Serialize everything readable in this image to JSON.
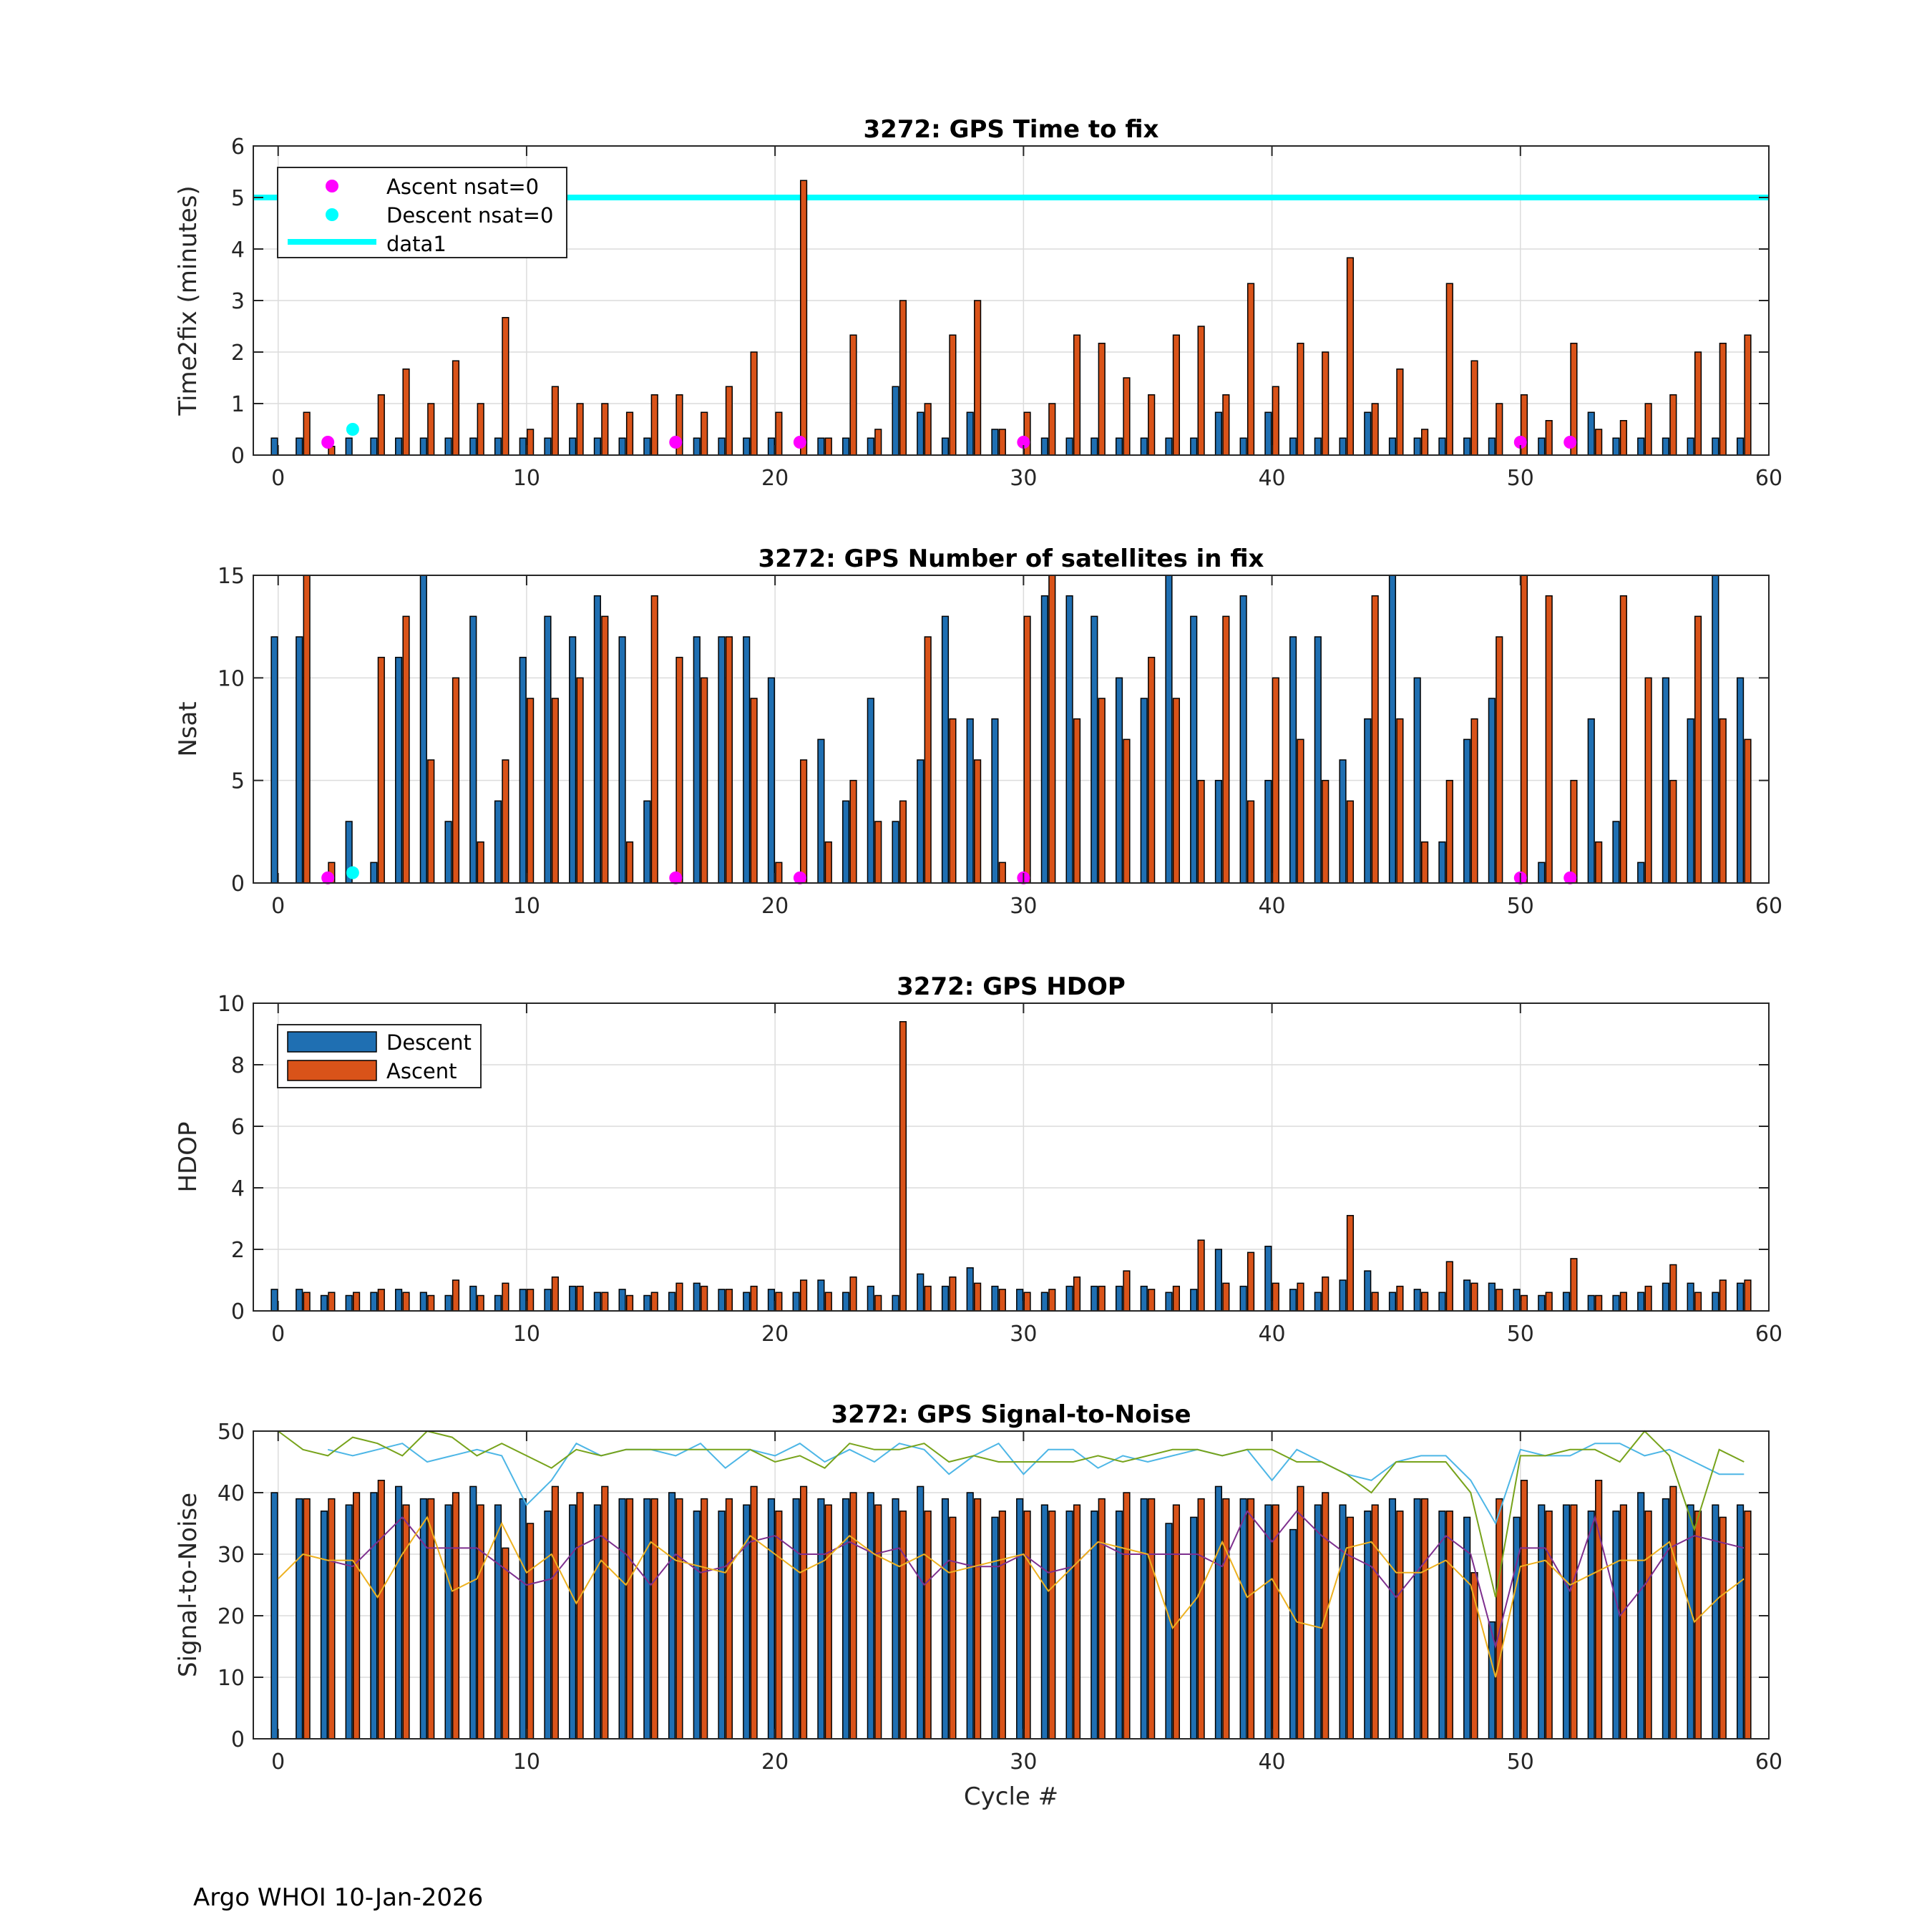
{
  "footer": "Argo WHOI 10-Jan-2026",
  "colors": {
    "descent": "#1f6fb2",
    "ascent": "#d95319",
    "cyan": "#00ffff",
    "magenta": "#ff00ff",
    "snr_light": "#4db6e6",
    "snr_green": "#77a31b",
    "snr_purple": "#7e2f8e",
    "snr_orange": "#edb120"
  },
  "chart_data": [
    {
      "type": "bar",
      "title": "3272: GPS Time to fix",
      "xlabel": "",
      "ylabel": "Time2fix (minutes)",
      "xlim": [
        -1,
        60
      ],
      "ylim": [
        0,
        6
      ],
      "xticks": [
        0,
        10,
        20,
        30,
        40,
        50,
        60
      ],
      "yticks": [
        0,
        1,
        2,
        3,
        4,
        5,
        6
      ],
      "legend": {
        "placement": "top-left",
        "entries": [
          "Ascent nsat=0",
          "Descent nsat=0",
          "data1"
        ]
      },
      "reference_line": {
        "name": "data1",
        "y": 5
      },
      "series": [
        {
          "name": "Descent",
          "values": [
            0.33,
            0.33,
            0,
            0.33,
            0.33,
            0.33,
            0.33,
            0.33,
            0.33,
            0.33,
            0.33,
            0.33,
            0.33,
            0.33,
            0.33,
            0.33,
            0,
            0.33,
            0.33,
            0.33,
            0.33,
            0,
            0.33,
            0.33,
            0.33,
            1.33,
            0.83,
            0.33,
            0.83,
            0.5,
            0,
            0.33,
            0.33,
            0.33,
            0.33,
            0.33,
            0.33,
            0.33,
            0.83,
            0.33,
            0.83,
            0.33,
            0.33,
            0.33,
            0.83,
            0.33,
            0.33,
            0.33,
            0.33,
            0.33,
            0,
            0.33,
            0,
            0.83,
            0.33,
            0.33,
            0.33,
            0.33,
            0.33,
            0.33
          ]
        },
        {
          "name": "Ascent",
          "values": [
            0,
            0.83,
            0.17,
            0,
            1.17,
            1.67,
            1,
            1.83,
            1,
            2.67,
            0.5,
            1.33,
            1,
            1,
            0.83,
            1.17,
            1.17,
            0.83,
            1.33,
            2,
            0.83,
            5.33,
            0.33,
            2.33,
            0.5,
            3,
            1,
            2.33,
            3,
            0.5,
            0.83,
            1,
            2.33,
            2.17,
            1.5,
            1.17,
            2.33,
            2.5,
            1.17,
            3.33,
            1.33,
            2.17,
            2,
            3.83,
            1,
            1.67,
            0.5,
            3.33,
            1.83,
            1,
            1.17,
            0.67,
            2.17,
            0.5,
            0.67,
            1,
            1.17,
            2,
            2.17,
            2.33
          ]
        },
        {
          "name": "Ascent nsat=0",
          "x": [
            2,
            16,
            21,
            30,
            50,
            52
          ],
          "y": [
            0.25,
            0.25,
            0.25,
            0.25,
            0.25,
            0.25
          ]
        },
        {
          "name": "Descent nsat=0",
          "x": [
            3
          ],
          "y": [
            0.5
          ]
        }
      ]
    },
    {
      "type": "bar",
      "title": "3272: GPS Number of satellites in fix",
      "xlabel": "",
      "ylabel": "Nsat",
      "xlim": [
        -1,
        60
      ],
      "ylim": [
        0,
        15
      ],
      "xticks": [
        0,
        10,
        20,
        30,
        40,
        50,
        60
      ],
      "yticks": [
        0,
        5,
        10,
        15
      ],
      "series": [
        {
          "name": "Descent",
          "values": [
            12,
            12,
            0,
            3,
            1,
            11,
            15,
            3,
            13,
            4,
            11,
            13,
            12,
            14,
            12,
            4,
            0,
            12,
            12,
            12,
            10,
            0,
            7,
            4,
            9,
            3,
            6,
            13,
            8,
            8,
            0,
            14,
            14,
            13,
            10,
            9,
            15,
            13,
            5,
            14,
            5,
            12,
            12,
            6,
            8,
            15,
            10,
            2,
            7,
            9,
            0,
            1,
            0,
            8,
            3,
            1,
            10,
            8,
            15,
            10
          ]
        },
        {
          "name": "Ascent",
          "values": [
            0,
            15,
            1,
            0,
            11,
            13,
            6,
            10,
            2,
            6,
            9,
            9,
            10,
            13,
            2,
            14,
            11,
            10,
            12,
            9,
            1,
            6,
            2,
            5,
            3,
            4,
            12,
            8,
            6,
            1,
            13,
            15,
            8,
            9,
            7,
            11,
            9,
            5,
            13,
            4,
            10,
            7,
            5,
            4,
            14,
            8,
            2,
            5,
            8,
            12,
            15,
            14,
            5,
            2,
            14,
            10,
            5,
            13,
            8,
            7
          ]
        },
        {
          "name": "Ascent nsat=0",
          "x": [
            2,
            16,
            21,
            30,
            50,
            52
          ],
          "y": [
            0.25,
            0.25,
            0.25,
            0.25,
            0.25,
            0.25
          ]
        },
        {
          "name": "Descent nsat=0",
          "x": [
            3
          ],
          "y": [
            0.5
          ]
        }
      ]
    },
    {
      "type": "bar",
      "title": "3272: GPS HDOP",
      "xlabel": "",
      "ylabel": "HDOP",
      "xlim": [
        -1,
        60
      ],
      "ylim": [
        0,
        10
      ],
      "xticks": [
        0,
        10,
        20,
        30,
        40,
        50,
        60
      ],
      "yticks": [
        0,
        2,
        4,
        6,
        8,
        10
      ],
      "legend": {
        "placement": "top-left",
        "entries": [
          "Descent",
          "Ascent"
        ]
      },
      "series": [
        {
          "name": "Descent",
          "values": [
            0.7,
            0.7,
            0.5,
            0.5,
            0.6,
            0.7,
            0.6,
            0.5,
            0.8,
            0.5,
            0.7,
            0.7,
            0.8,
            0.6,
            0.7,
            0.5,
            0.6,
            0.9,
            0.7,
            0.6,
            0.7,
            0.6,
            1,
            0.6,
            0.8,
            0.5,
            1.2,
            0.8,
            1.4,
            0.8,
            0.7,
            0.6,
            0.8,
            0.8,
            0.8,
            0.8,
            0.6,
            0.7,
            2,
            0.8,
            2.1,
            0.7,
            0.6,
            1,
            1.3,
            0.6,
            0.7,
            0.6,
            1,
            0.9,
            0.7,
            0.5,
            0.6,
            0.5,
            0.5,
            0.6,
            0.9,
            0.9,
            0.6,
            0.9
          ]
        },
        {
          "name": "Ascent",
          "values": [
            0,
            0.6,
            0.6,
            0.6,
            0.7,
            0.6,
            0.5,
            1,
            0.5,
            0.9,
            0.7,
            1.1,
            0.8,
            0.6,
            0.5,
            0.6,
            0.9,
            0.8,
            0.7,
            0.8,
            0.6,
            1,
            0.6,
            1.1,
            0.5,
            9.4,
            0.8,
            1.1,
            0.9,
            0.7,
            0.6,
            0.7,
            1.1,
            0.8,
            1.3,
            0.7,
            0.8,
            2.3,
            0.9,
            1.9,
            0.9,
            0.9,
            1.1,
            3.1,
            0.6,
            0.8,
            0.6,
            1.6,
            0.9,
            0.7,
            0.5,
            0.6,
            1.7,
            0.5,
            0.6,
            0.8,
            1.5,
            0.6,
            1,
            1
          ]
        }
      ]
    },
    {
      "type": "bar",
      "title": "3272: GPS Signal-to-Noise",
      "xlabel": "Cycle #",
      "ylabel": "Signal-to-Noise",
      "xlim": [
        -1,
        60
      ],
      "ylim": [
        0,
        50
      ],
      "xticks": [
        0,
        10,
        20,
        30,
        40,
        50,
        60
      ],
      "yticks": [
        0,
        10,
        20,
        30,
        40,
        50
      ],
      "series": [
        {
          "name": "Descent",
          "values": [
            40,
            39,
            37,
            38,
            40,
            41,
            39,
            38,
            41,
            38,
            39,
            37,
            38,
            38,
            39,
            39,
            40,
            37,
            37,
            38,
            39,
            39,
            39,
            39,
            40,
            39,
            41,
            39,
            40,
            36,
            39,
            38,
            37,
            37,
            37,
            39,
            35,
            36,
            41,
            39,
            38,
            34,
            38,
            38,
            37,
            39,
            39,
            37,
            36,
            19,
            36,
            38,
            38,
            37,
            37,
            40,
            39,
            38,
            38,
            38
          ]
        },
        {
          "name": "Ascent",
          "values": [
            0,
            39,
            39,
            40,
            42,
            38,
            39,
            40,
            38,
            31,
            35,
            41,
            40,
            41,
            39,
            39,
            39,
            39,
            39,
            41,
            37,
            41,
            38,
            40,
            38,
            37,
            37,
            36,
            39,
            37,
            37,
            37,
            38,
            39,
            40,
            39,
            38,
            39,
            39,
            39,
            38,
            41,
            40,
            36,
            38,
            37,
            39,
            37,
            27,
            39,
            42,
            37,
            38,
            42,
            38,
            37,
            41,
            37,
            36,
            37
          ]
        },
        {
          "name": "SNR max descent",
          "values": [
            null,
            null,
            47,
            46,
            47,
            48,
            45,
            46,
            47,
            46,
            38,
            42,
            48,
            46,
            47,
            47,
            46,
            48,
            44,
            47,
            46,
            48,
            45,
            47,
            45,
            48,
            47,
            43,
            46,
            48,
            43,
            47,
            47,
            44,
            46,
            45,
            46,
            47,
            46,
            47,
            42,
            47,
            45,
            43,
            42,
            45,
            46,
            46,
            42,
            35,
            47,
            46,
            46,
            48,
            48,
            46,
            47,
            45,
            43,
            43
          ]
        },
        {
          "name": "SNR max ascent",
          "values": [
            50,
            47,
            46,
            49,
            48,
            46,
            52,
            49,
            46,
            48,
            46,
            44,
            47,
            46,
            47,
            47,
            47,
            47,
            47,
            47,
            45,
            46,
            44,
            48,
            47,
            47,
            48,
            45,
            46,
            45,
            45,
            45,
            45,
            46,
            45,
            46,
            47,
            47,
            46,
            47,
            47,
            45,
            45,
            43,
            40,
            45,
            45,
            45,
            40,
            23,
            46,
            46,
            47,
            47,
            45,
            51,
            46,
            34,
            47,
            45
          ]
        },
        {
          "name": "SNR mean descent",
          "values": [
            null,
            null,
            29,
            28,
            32,
            36,
            31,
            31,
            31,
            28,
            25,
            26,
            31,
            33,
            30,
            25,
            30,
            27,
            28,
            32,
            33,
            30,
            30,
            32,
            30,
            31,
            25,
            29,
            28,
            28,
            30,
            27,
            28,
            32,
            30,
            30,
            30,
            30,
            28,
            37,
            32,
            37,
            33,
            30,
            28,
            23,
            28,
            33,
            30,
            15,
            31,
            31,
            24,
            36,
            20,
            25,
            31,
            33,
            32,
            31
          ]
        },
        {
          "name": "SNR mean ascent",
          "values": [
            26,
            30,
            29,
            29,
            23,
            30,
            36,
            24,
            26,
            35,
            27,
            30,
            22,
            29,
            25,
            32,
            29,
            28,
            27,
            33,
            30,
            27,
            29,
            33,
            30,
            28,
            30,
            27,
            28,
            29,
            30,
            24,
            28,
            32,
            31,
            30,
            18,
            23,
            32,
            23,
            26,
            19,
            18,
            31,
            32,
            27,
            27,
            29,
            25,
            10,
            28,
            29,
            25,
            27,
            29,
            29,
            32,
            19,
            23,
            26
          ]
        }
      ]
    }
  ]
}
